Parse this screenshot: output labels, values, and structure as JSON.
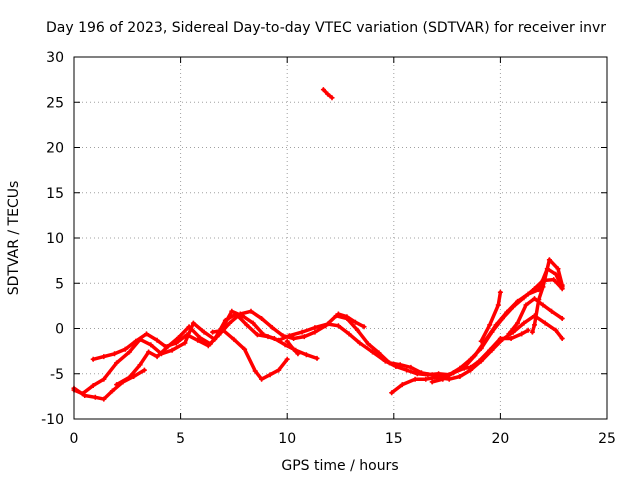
{
  "chart_data": {
    "type": "scatter",
    "title": "Day 196 of 2023, Sidereal Day-to-day VTEC variation (SDTVAR) for receiver invr",
    "xlabel": "GPS time / hours",
    "ylabel": "SDTVAR / TECUs",
    "xlim": [
      0,
      25
    ],
    "ylim": [
      -10,
      30
    ],
    "xticks": [
      0,
      5,
      10,
      15,
      20,
      25
    ],
    "yticks": [
      -10,
      -5,
      0,
      5,
      10,
      15,
      20,
      25,
      30
    ],
    "grid": true,
    "color": "#ff0000",
    "series": [
      {
        "name": "track-1",
        "points": [
          [
            0.0,
            -6.8
          ],
          [
            0.4,
            -7.2
          ],
          [
            0.9,
            -6.3
          ],
          [
            1.4,
            -5.6
          ],
          [
            2.0,
            -3.8
          ],
          [
            2.6,
            -2.6
          ],
          [
            3.1,
            -1.2
          ],
          [
            3.6,
            -1.8
          ],
          [
            4.1,
            -2.8
          ],
          [
            4.6,
            -2.4
          ],
          [
            5.2,
            -1.6
          ],
          [
            5.6,
            0.6
          ],
          [
            6.1,
            -0.4
          ],
          [
            6.6,
            -1.2
          ],
          [
            7.1,
            0.9
          ],
          [
            7.6,
            1.6
          ],
          [
            8.1,
            0.4
          ],
          [
            8.6,
            -0.7
          ],
          [
            9.1,
            -0.9
          ],
          [
            9.6,
            -1.3
          ],
          [
            10.1,
            -0.8
          ],
          [
            10.7,
            -0.4
          ],
          [
            11.3,
            0.1
          ],
          [
            11.9,
            0.5
          ],
          [
            12.4,
            0.3
          ],
          [
            12.9,
            -0.6
          ],
          [
            13.4,
            -1.6
          ],
          [
            14.0,
            -2.6
          ],
          [
            14.6,
            -3.6
          ],
          [
            15.1,
            -4.2
          ],
          [
            15.6,
            -4.6
          ],
          [
            16.1,
            -5.0
          ],
          [
            16.6,
            -5.1
          ],
          [
            17.1,
            -5.0
          ],
          [
            17.6,
            -5.1
          ],
          [
            18.1,
            -4.4
          ],
          [
            18.6,
            -3.4
          ],
          [
            19.1,
            -2.2
          ],
          [
            19.6,
            -0.4
          ],
          [
            20.1,
            1.1
          ],
          [
            20.6,
            2.4
          ],
          [
            21.1,
            3.4
          ],
          [
            21.6,
            4.4
          ],
          [
            22.0,
            5.3
          ],
          [
            22.5,
            5.4
          ],
          [
            22.9,
            4.4
          ]
        ]
      },
      {
        "name": "track-2",
        "points": [
          [
            0.0,
            -6.6
          ],
          [
            0.5,
            -7.4
          ],
          [
            1.0,
            -7.6
          ],
          [
            1.4,
            -7.8
          ],
          [
            1.8,
            -6.9
          ],
          [
            2.3,
            -5.9
          ],
          [
            2.8,
            -5.3
          ],
          [
            3.3,
            -4.6
          ]
        ]
      },
      {
        "name": "track-3",
        "points": [
          [
            0.9,
            -3.4
          ],
          [
            1.4,
            -3.1
          ],
          [
            1.9,
            -2.8
          ],
          [
            2.4,
            -2.3
          ],
          [
            2.9,
            -1.4
          ],
          [
            3.4,
            -0.6
          ],
          [
            3.9,
            -1.3
          ],
          [
            4.3,
            -2.0
          ],
          [
            4.8,
            -1.6
          ],
          [
            5.3,
            -0.7
          ],
          [
            5.8,
            -1.3
          ],
          [
            6.3,
            -1.9
          ],
          [
            6.8,
            -0.7
          ],
          [
            7.3,
            0.6
          ],
          [
            7.8,
            1.6
          ],
          [
            8.3,
            1.9
          ],
          [
            8.8,
            1.1
          ],
          [
            9.3,
            0.1
          ],
          [
            9.8,
            -0.8
          ],
          [
            10.3,
            -1.1
          ],
          [
            10.8,
            -0.9
          ],
          [
            11.3,
            -0.4
          ],
          [
            11.8,
            0.3
          ],
          [
            12.3,
            1.4
          ],
          [
            12.8,
            1.1
          ],
          [
            13.3,
            -0.2
          ],
          [
            13.8,
            -1.7
          ],
          [
            14.3,
            -2.7
          ],
          [
            14.8,
            -3.8
          ],
          [
            15.3,
            -4.0
          ],
          [
            15.8,
            -4.3
          ],
          [
            16.3,
            -4.9
          ],
          [
            16.8,
            -5.1
          ],
          [
            17.3,
            -5.3
          ],
          [
            17.8,
            -4.9
          ],
          [
            18.3,
            -4.3
          ],
          [
            18.8,
            -3.0
          ],
          [
            19.3,
            -1.3
          ],
          [
            19.8,
            0.4
          ],
          [
            20.3,
            1.8
          ],
          [
            20.8,
            3.0
          ],
          [
            21.3,
            3.8
          ],
          [
            21.8,
            4.3
          ],
          [
            22.2,
            6.6
          ],
          [
            22.6,
            6.0
          ],
          [
            22.9,
            4.6
          ]
        ]
      },
      {
        "name": "track-4",
        "points": [
          [
            2.0,
            -6.2
          ],
          [
            2.6,
            -5.4
          ],
          [
            3.1,
            -4.0
          ],
          [
            3.5,
            -2.6
          ],
          [
            3.9,
            -3.1
          ],
          [
            4.4,
            -2.0
          ],
          [
            4.9,
            -1.0
          ],
          [
            5.4,
            0.2
          ],
          [
            5.9,
            -1.0
          ],
          [
            6.4,
            -1.7
          ],
          [
            6.9,
            -0.2
          ],
          [
            7.4,
            1.9
          ],
          [
            7.9,
            1.4
          ],
          [
            8.4,
            0.6
          ],
          [
            8.9,
            -0.7
          ],
          [
            9.4,
            -1.1
          ],
          [
            9.9,
            -1.8
          ],
          [
            10.4,
            -2.4
          ],
          [
            10.9,
            -2.9
          ],
          [
            11.4,
            -3.3
          ]
        ]
      },
      {
        "name": "track-5",
        "points": [
          [
            6.5,
            -0.4
          ],
          [
            7.0,
            -0.2
          ],
          [
            7.5,
            -1.2
          ],
          [
            8.0,
            -2.3
          ],
          [
            8.5,
            -4.7
          ],
          [
            8.8,
            -5.6
          ],
          [
            9.2,
            -5.1
          ],
          [
            9.6,
            -4.6
          ],
          [
            10.0,
            -3.4
          ]
        ]
      },
      {
        "name": "track-6",
        "points": [
          [
            10.0,
            -1.4
          ],
          [
            10.3,
            -2.3
          ],
          [
            10.5,
            -2.8
          ]
        ]
      },
      {
        "name": "track-7",
        "points": [
          [
            12.4,
            1.6
          ],
          [
            12.8,
            1.3
          ],
          [
            13.2,
            0.7
          ],
          [
            13.6,
            0.2
          ]
        ]
      },
      {
        "name": "track-8",
        "points": [
          [
            14.9,
            -7.1
          ],
          [
            15.4,
            -6.2
          ],
          [
            16.0,
            -5.6
          ],
          [
            16.5,
            -5.6
          ],
          [
            17.0,
            -5.4
          ],
          [
            17.6,
            -5.6
          ],
          [
            18.1,
            -5.3
          ],
          [
            18.6,
            -4.6
          ],
          [
            19.1,
            -3.6
          ],
          [
            19.6,
            -2.4
          ],
          [
            20.1,
            -1.2
          ],
          [
            20.6,
            -0.4
          ],
          [
            21.1,
            0.6
          ],
          [
            21.6,
            1.4
          ],
          [
            22.1,
            0.6
          ],
          [
            22.6,
            -0.2
          ],
          [
            22.9,
            -1.1
          ]
        ]
      },
      {
        "name": "track-9",
        "points": [
          [
            16.8,
            -5.9
          ],
          [
            17.3,
            -5.6
          ],
          [
            17.8,
            -4.9
          ],
          [
            18.3,
            -4.4
          ],
          [
            18.6,
            -4.3
          ],
          [
            19.0,
            -3.6
          ],
          [
            19.5,
            -2.4
          ],
          [
            20.0,
            -1.1
          ],
          [
            20.5,
            -1.1
          ],
          [
            21.0,
            -0.6
          ],
          [
            21.3,
            -0.2
          ]
        ]
      },
      {
        "name": "track-10",
        "points": [
          [
            19.1,
            -1.4
          ],
          [
            19.5,
            0.4
          ],
          [
            19.9,
            2.6
          ],
          [
            20.0,
            4.0
          ]
        ]
      },
      {
        "name": "track-11",
        "points": [
          [
            20.4,
            -0.6
          ],
          [
            20.8,
            0.6
          ],
          [
            21.2,
            2.6
          ],
          [
            21.6,
            3.3
          ],
          [
            22.0,
            2.6
          ],
          [
            22.4,
            1.9
          ],
          [
            22.9,
            1.1
          ]
        ]
      },
      {
        "name": "track-12",
        "points": [
          [
            21.5,
            -0.4
          ],
          [
            21.6,
            0.4
          ],
          [
            21.8,
            3.2
          ],
          [
            22.0,
            4.6
          ],
          [
            22.3,
            7.6
          ],
          [
            22.7,
            6.6
          ],
          [
            22.9,
            4.8
          ]
        ]
      },
      {
        "name": "track-13",
        "points": [
          [
            11.7,
            26.4
          ],
          [
            11.9,
            25.9
          ],
          [
            12.1,
            25.5
          ]
        ]
      }
    ]
  }
}
